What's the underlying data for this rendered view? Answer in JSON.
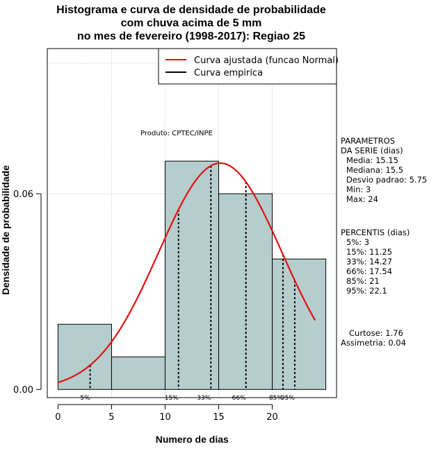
{
  "chart_data": {
    "type": "bar",
    "title": [
      "Histograma e curva de densidade de probabilidade",
      "com chuva acima de 5 mm",
      "no mes de fevereiro (1998-2017): Regiao 25"
    ],
    "xlabel": "Numero de dias",
    "ylabel": "Densidade de probabilidade",
    "xlim": [
      -1,
      26
    ],
    "ylim": [
      -0.0025,
      0.1045
    ],
    "xticks": [
      0,
      5,
      10,
      15,
      20
    ],
    "xtick_labels": [
      "0",
      "5",
      "10",
      "15",
      "20"
    ],
    "yticks": [
      0,
      0.06
    ],
    "ytick_labels": [
      "0.00",
      "0.06"
    ],
    "grid_x": [
      5,
      10,
      15,
      20
    ],
    "grid_y": [
      0.06,
      0.1
    ],
    "bins": [
      {
        "x0": 0,
        "x1": 5,
        "density": 0.02
      },
      {
        "x0": 5,
        "x1": 10,
        "density": 0.01
      },
      {
        "x0": 10,
        "x1": 15,
        "density": 0.07
      },
      {
        "x0": 15,
        "x1": 20,
        "density": 0.06
      },
      {
        "x0": 20,
        "x1": 25,
        "density": 0.04
      }
    ],
    "normal_curve": {
      "mean": 15.15,
      "sd": 5.75,
      "x_from": 0,
      "x_to": 24,
      "color": "#e31010"
    },
    "percentile_lines": [
      {
        "label": "5%",
        "x": 3
      },
      {
        "label": "15%",
        "x": 11.25
      },
      {
        "label": "33%",
        "x": 14.27
      },
      {
        "label": "66%",
        "x": 17.54
      },
      {
        "label": "85%",
        "x": 21
      },
      {
        "label": "95%",
        "x": 22.1
      }
    ],
    "legend": {
      "position": "top-right",
      "entries": [
        {
          "label": "Curva ajustada (funcao Normal)",
          "color": "#e31010"
        },
        {
          "label": "Curva empirica",
          "color": "#000000"
        }
      ]
    },
    "annotation": "Produto: CPTEC/INPE",
    "bar_color": "#b5cdcc"
  },
  "stats": {
    "params_title": [
      "PARAMETROS",
      "DA SERIE (dias)"
    ],
    "params": [
      "Media: 15.15",
      "Mediana: 15.5",
      "Desvio padrao: 5.75",
      "Min: 3",
      "Max: 24"
    ],
    "percentis_title": "PERCENTIS (dias)",
    "percentis": [
      "5%: 3",
      "15%: 11.25",
      "33%: 14.27",
      "66%: 17.54",
      "85%: 21",
      "95%: 22.1"
    ],
    "curtose": "Curtose: 1.76",
    "assimetria": "Assimetria: 0.04"
  }
}
